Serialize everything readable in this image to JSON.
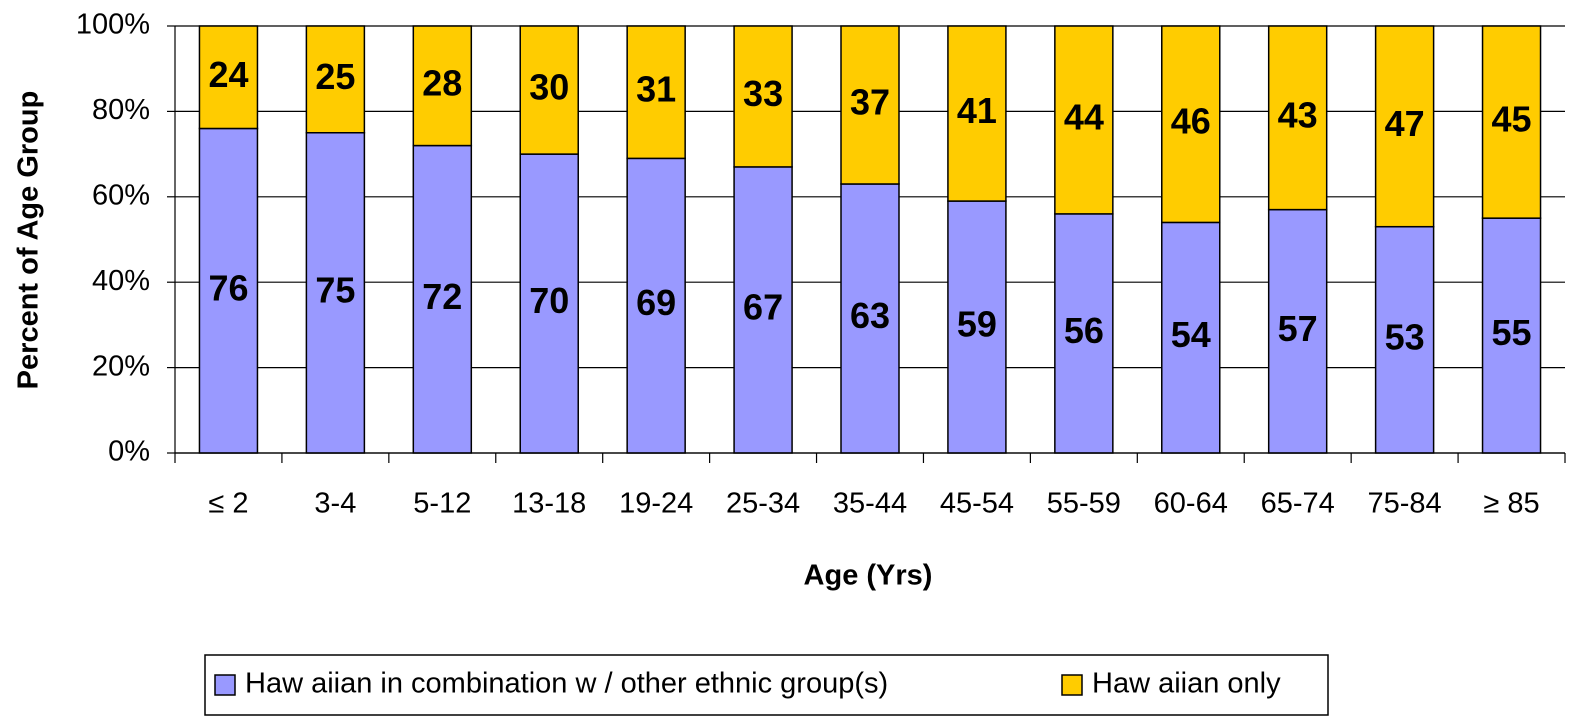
{
  "chart_data": {
    "type": "stacked_bar",
    "xlabel": "Age (Yrs)",
    "ylabel": "Percent of Age Group",
    "categories": [
      "≤ 2",
      "3-4",
      "5-12",
      "13-18",
      "19-24",
      "25-34",
      "35-44",
      "45-54",
      "55-59",
      "60-64",
      "65-74",
      "75-84",
      "≥ 85"
    ],
    "series": [
      {
        "name": "Haw aiian in combination w / other ethnic group(s)",
        "color": "#9999ff",
        "values": [
          76,
          75,
          72,
          70,
          69,
          67,
          63,
          59,
          56,
          54,
          57,
          53,
          55
        ]
      },
      {
        "name": "Haw aiian only",
        "color": "#ffcc00",
        "values": [
          24,
          25,
          28,
          30,
          31,
          33,
          37,
          41,
          44,
          46,
          43,
          47,
          45
        ]
      }
    ],
    "ylim": [
      0,
      100
    ],
    "yticks": [
      {
        "value": 0,
        "label": "0%"
      },
      {
        "value": 20,
        "label": "20%"
      },
      {
        "value": 40,
        "label": "40%"
      },
      {
        "value": 60,
        "label": "60%"
      },
      {
        "value": 80,
        "label": "80%"
      },
      {
        "value": 100,
        "label": "100%"
      }
    ],
    "grid": true,
    "legend": "bottom"
  }
}
